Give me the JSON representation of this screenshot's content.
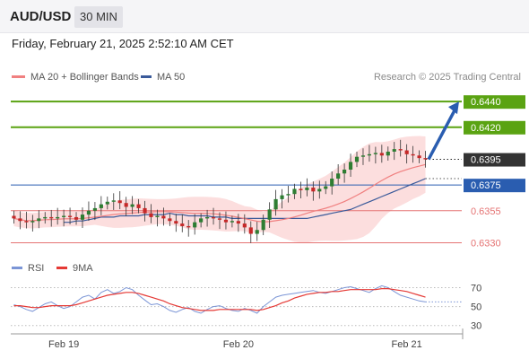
{
  "header": {
    "symbol": "AUD/USD",
    "timeframe": "30 MIN"
  },
  "timestamp": "Friday, February 21, 2025 2:52:10 AM CET",
  "legend": {
    "ma20_label": "MA 20 + Bollinger Bands",
    "ma50_label": "MA 50",
    "credit": "Research © 2025 Trading Central"
  },
  "rsi_legend": {
    "rsi_label": "RSI",
    "ma_label": "9MA"
  },
  "colors": {
    "up_candle": "#2e7d32",
    "down_candle": "#c62828",
    "ma20": "#f08080",
    "bollinger_fill": "#fbd3d3",
    "ma50": "#3a5a9a",
    "resistance": "#5aa312",
    "support_red": "#e57373",
    "pivot_blue": "#2a5db0",
    "arrow": "#2a5db0",
    "current_price_tag": "#333333",
    "rsi_line": "#7b95d6",
    "rsi_ma": "#e53935"
  },
  "chart_data": {
    "type": "candlestick",
    "symbol": "AUD/USD",
    "interval": "30 MIN",
    "ylim": [
      0.6322,
      0.6452
    ],
    "x_ticks": [
      "Feb 19",
      "Feb 20",
      "Feb 21"
    ],
    "current_price": 0.6395,
    "levels": [
      {
        "value": 0.644,
        "label": "0.6440",
        "kind": "resistance"
      },
      {
        "value": 0.642,
        "label": "0.6420",
        "kind": "resistance"
      },
      {
        "value": 0.6375,
        "label": "0.6375",
        "kind": "pivot"
      },
      {
        "value": 0.6355,
        "label": "0.6355",
        "kind": "support"
      },
      {
        "value": 0.633,
        "label": "0.6330",
        "kind": "support"
      }
    ],
    "current_label": "0.6395",
    "arrow": {
      "from": 0.6395,
      "to": 0.644,
      "direction": "up"
    },
    "close_series": [
      0.6349,
      0.6347,
      0.6346,
      0.6347,
      0.6349,
      0.635,
      0.6349,
      0.635,
      0.6351,
      0.635,
      0.6348,
      0.6352,
      0.6355,
      0.6357,
      0.636,
      0.6362,
      0.6363,
      0.6361,
      0.6358,
      0.636,
      0.6357,
      0.6353,
      0.635,
      0.6351,
      0.6349,
      0.6347,
      0.6345,
      0.6343,
      0.6342,
      0.6346,
      0.6349,
      0.635,
      0.6349,
      0.6348,
      0.6346,
      0.6347,
      0.6345,
      0.6342,
      0.6337,
      0.634,
      0.6348,
      0.6356,
      0.6364,
      0.6367,
      0.6368,
      0.6372,
      0.6371,
      0.6373,
      0.637,
      0.6372,
      0.6374,
      0.638,
      0.6384,
      0.6387,
      0.6393,
      0.6397,
      0.6398,
      0.6399,
      0.64,
      0.6398,
      0.6401,
      0.6403,
      0.6402,
      0.6399,
      0.6398,
      0.6396,
      0.6395
    ],
    "ma50_series": [
      0.6346,
      0.6346,
      0.6347,
      0.6347,
      0.6348,
      0.6349,
      0.635,
      0.635,
      0.635,
      0.6351,
      0.6351,
      0.6351,
      0.6351,
      0.6352,
      0.6352,
      0.6352,
      0.6352,
      0.6353,
      0.6352,
      0.6352,
      0.6351,
      0.6351,
      0.6351,
      0.6351,
      0.635,
      0.635,
      0.635,
      0.6349,
      0.6349,
      0.6349,
      0.6349,
      0.6349,
      0.6349,
      0.6349,
      0.6349,
      0.6349,
      0.6349,
      0.6349,
      0.6349,
      0.6349,
      0.635,
      0.6351,
      0.6352,
      0.6353,
      0.6354,
      0.6355,
      0.6356,
      0.6358,
      0.636,
      0.6362,
      0.6364,
      0.6366,
      0.6368,
      0.637,
      0.6372,
      0.6374,
      0.6376,
      0.6378,
      0.638
    ],
    "rsi": {
      "levels": [
        70,
        50,
        30
      ],
      "ylim": [
        25,
        80
      ],
      "rsi_series": [
        52,
        50,
        47,
        45,
        49,
        53,
        55,
        51,
        48,
        50,
        55,
        60,
        62,
        58,
        65,
        68,
        64,
        66,
        70,
        68,
        62,
        57,
        52,
        53,
        50,
        46,
        44,
        47,
        49,
        45,
        43,
        47,
        50,
        51,
        48,
        46,
        45,
        48,
        46,
        43,
        50,
        55,
        60,
        62,
        63,
        64,
        65,
        66,
        67,
        65,
        64,
        66,
        68,
        70,
        71,
        69,
        67,
        65,
        69,
        72,
        70,
        66,
        62,
        60,
        58,
        56,
        55
      ],
      "ma9_series": [
        51,
        51,
        50,
        49,
        49,
        50,
        51,
        51,
        51,
        51,
        52,
        54,
        56,
        58,
        60,
        62,
        63,
        64,
        65,
        65,
        64,
        62,
        60,
        58,
        56,
        53,
        51,
        49,
        48,
        47,
        46,
        46,
        46,
        47,
        47,
        47,
        47,
        47,
        47,
        46,
        47,
        49,
        51,
        54,
        56,
        59,
        61,
        63,
        64,
        65,
        65,
        66,
        66,
        67,
        68,
        68,
        68,
        68,
        68,
        69,
        69,
        68,
        67,
        66,
        64,
        62,
        60
      ]
    }
  }
}
